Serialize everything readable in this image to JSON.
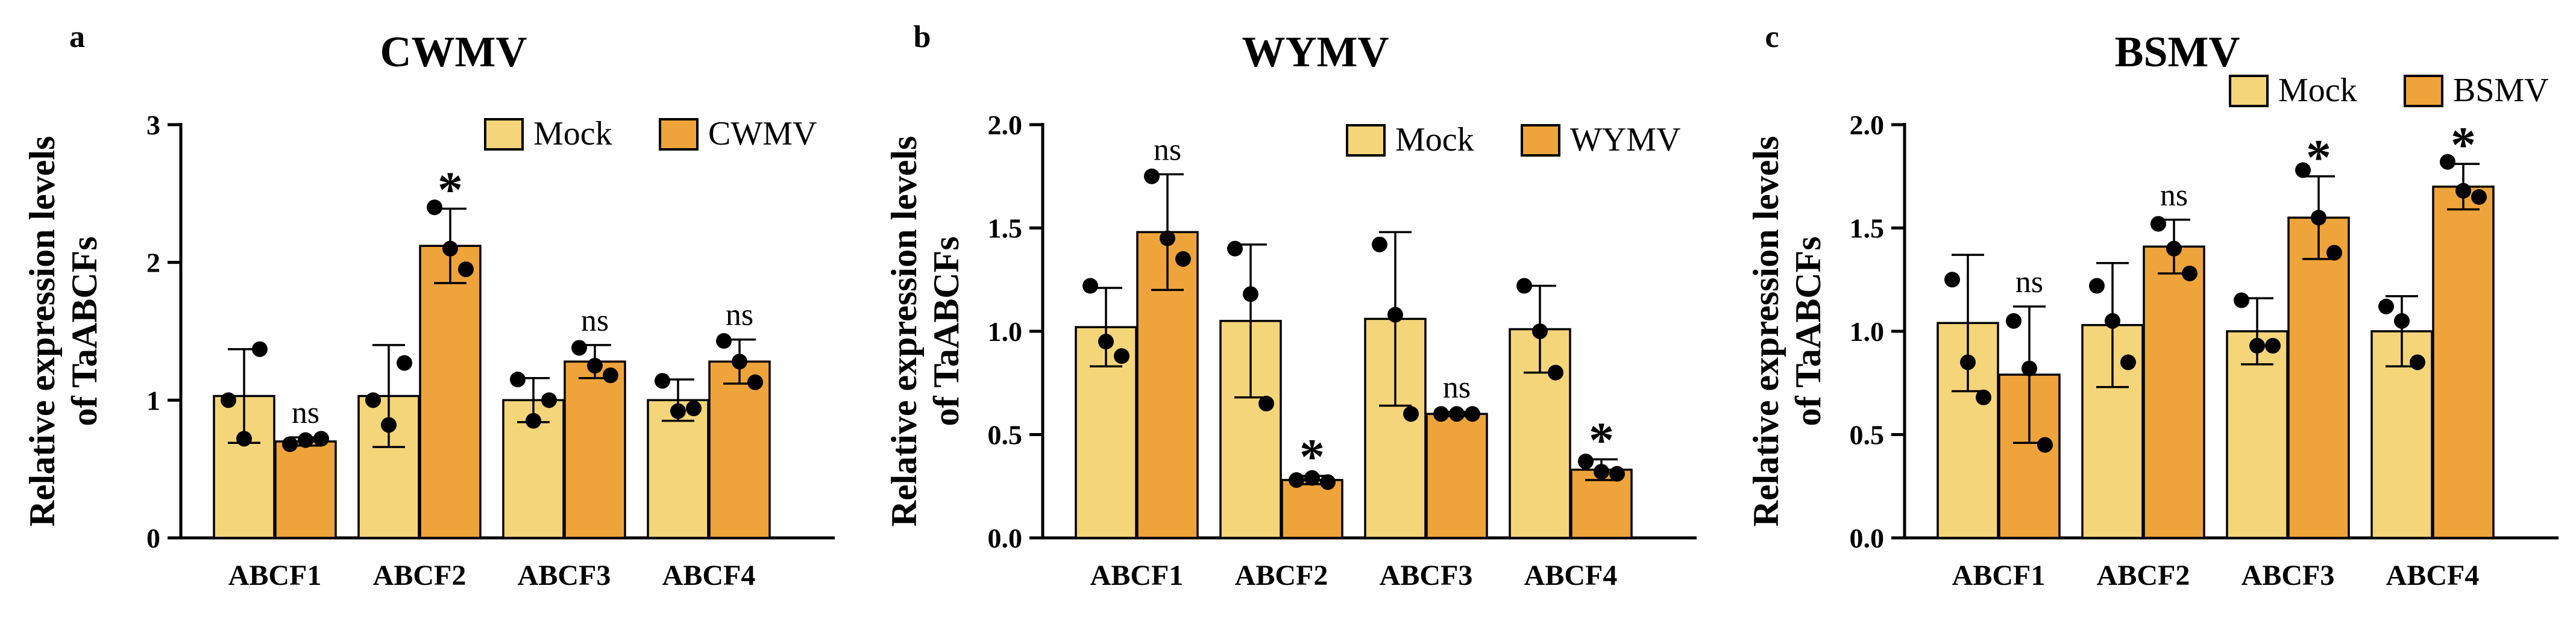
{
  "colors": {
    "mock": "#F5D57A",
    "virus": "#EEA43B",
    "stroke": "#000000"
  },
  "chart_data": [
    {
      "type": "bar",
      "panel_label": "a",
      "title": "CWMV",
      "ylabel_line1": "Relative expression levels",
      "ylabel_line2": "of TaABCFs",
      "xlabel": "",
      "ylim": [
        0,
        3
      ],
      "yticks": [
        0,
        1,
        2,
        3
      ],
      "ytick_labels": [
        "0",
        "1",
        "2",
        "3"
      ],
      "categories": [
        "ABCF1",
        "ABCF2",
        "ABCF3",
        "ABCF4"
      ],
      "legend": [
        "Mock",
        "CWMV"
      ],
      "legend_position": "top-right",
      "series": [
        {
          "name": "Mock",
          "values": [
            1.03,
            1.03,
            1.0,
            1.0
          ],
          "errors": [
            0.34,
            0.37,
            0.16,
            0.15
          ],
          "points": [
            [
              1.0,
              0.72,
              1.37
            ],
            [
              1.0,
              0.82,
              1.27
            ],
            [
              1.15,
              0.85,
              1.0
            ],
            [
              1.14,
              0.92,
              0.94
            ]
          ]
        },
        {
          "name": "CWMV",
          "values": [
            0.7,
            2.12,
            1.28,
            1.28
          ],
          "errors": [
            0.03,
            0.27,
            0.12,
            0.16
          ],
          "points": [
            [
              0.68,
              0.71,
              0.72
            ],
            [
              2.4,
              2.1,
              1.95
            ],
            [
              1.38,
              1.25,
              1.18
            ],
            [
              1.43,
              1.28,
              1.13
            ]
          ]
        }
      ],
      "annotations": [
        "ns",
        "*",
        "ns",
        "ns"
      ]
    },
    {
      "type": "bar",
      "panel_label": "b",
      "title": "WYMV",
      "ylabel_line1": "Relative expression levels",
      "ylabel_line2": "of TaABCFs",
      "xlabel": "",
      "ylim": [
        0,
        2
      ],
      "yticks": [
        0,
        0.5,
        1,
        1.5,
        2
      ],
      "ytick_labels": [
        "0.0",
        "0.5",
        "1.0",
        "1.5",
        "2.0"
      ],
      "categories": [
        "ABCF1",
        "ABCF2",
        "ABCF3",
        "ABCF4"
      ],
      "legend": [
        "Mock",
        "WYMV"
      ],
      "legend_position": "top-right",
      "series": [
        {
          "name": "Mock",
          "values": [
            1.02,
            1.05,
            1.06,
            1.01
          ],
          "errors": [
            0.19,
            0.37,
            0.42,
            0.21
          ],
          "points": [
            [
              1.22,
              0.95,
              0.88
            ],
            [
              1.4,
              1.18,
              0.65
            ],
            [
              1.42,
              1.08,
              0.6
            ],
            [
              1.22,
              1.0,
              0.8
            ]
          ]
        },
        {
          "name": "WYMV",
          "values": [
            1.48,
            0.28,
            0.6,
            0.33
          ],
          "errors": [
            0.28,
            0.02,
            0.01,
            0.05
          ],
          "points": [
            [
              1.75,
              1.45,
              1.35
            ],
            [
              0.28,
              0.29,
              0.27
            ],
            [
              0.6,
              0.6,
              0.6
            ],
            [
              0.37,
              0.32,
              0.31
            ]
          ]
        }
      ],
      "annotations": [
        "ns",
        "*",
        "ns",
        "*"
      ]
    },
    {
      "type": "bar",
      "panel_label": "c",
      "title": "BSMV",
      "ylabel_line1": "Relative expression levels",
      "ylabel_line2": "of TaABCFs",
      "xlabel": "",
      "ylim": [
        0,
        2
      ],
      "yticks": [
        0,
        0.5,
        1,
        1.5,
        2
      ],
      "ytick_labels": [
        "0.0",
        "0.5",
        "1.0",
        "1.5",
        "2.0"
      ],
      "categories": [
        "ABCF1",
        "ABCF2",
        "ABCF3",
        "ABCF4"
      ],
      "legend": [
        "Mock",
        "BSMV"
      ],
      "legend_position": "top-right",
      "series": [
        {
          "name": "Mock",
          "values": [
            1.04,
            1.03,
            1.0,
            1.0
          ],
          "errors": [
            0.33,
            0.3,
            0.16,
            0.17
          ],
          "points": [
            [
              1.25,
              0.85,
              0.68
            ],
            [
              1.22,
              1.05,
              0.85
            ],
            [
              1.15,
              0.93,
              0.93
            ],
            [
              1.12,
              1.05,
              0.85
            ]
          ]
        },
        {
          "name": "BSMV",
          "values": [
            0.79,
            1.41,
            1.55,
            1.7
          ],
          "errors": [
            0.33,
            0.13,
            0.2,
            0.11
          ],
          "points": [
            [
              1.05,
              0.82,
              0.45
            ],
            [
              1.52,
              1.4,
              1.28
            ],
            [
              1.78,
              1.55,
              1.38
            ],
            [
              1.82,
              1.68,
              1.65
            ]
          ]
        }
      ],
      "annotations": [
        "ns",
        "ns",
        "*",
        "*"
      ]
    }
  ]
}
